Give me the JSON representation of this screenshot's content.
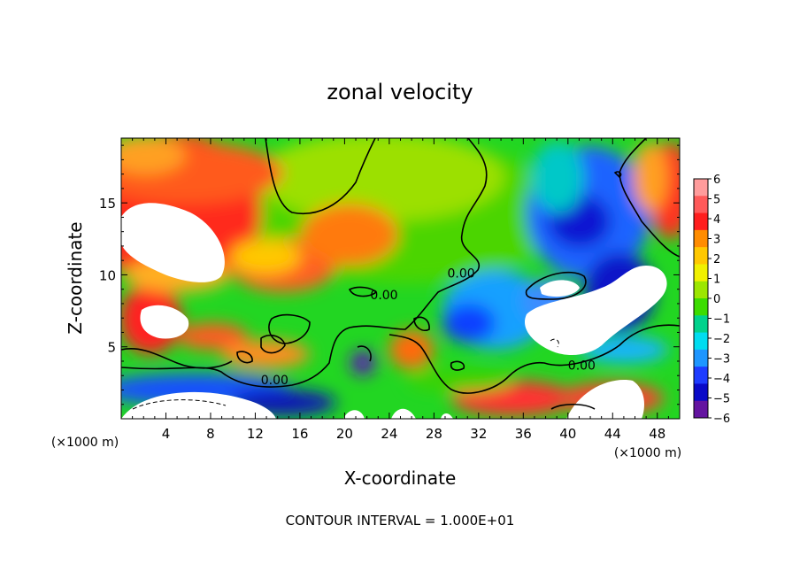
{
  "chart_data": {
    "type": "heatmap",
    "title": "zonal velocity",
    "xlabel": "X-coordinate",
    "ylabel": "Z-coordinate",
    "x_unit": "(×1000 m)",
    "y_unit": "(×1000 m)",
    "xlim": [
      0,
      50
    ],
    "ylim": [
      0,
      19.5
    ],
    "x_ticks": [
      4,
      8,
      12,
      16,
      20,
      24,
      28,
      32,
      36,
      40,
      44,
      48
    ],
    "y_ticks": [
      5,
      10,
      15
    ],
    "colorbar": {
      "ticks": [
        6,
        5,
        4,
        3,
        2,
        1,
        0,
        -1,
        -2,
        -3,
        -4,
        -5,
        -6
      ],
      "range": [
        -6,
        6
      ]
    },
    "contour_labels": [
      {
        "text": "0.00",
        "x": 12.5,
        "y": 2.4
      },
      {
        "text": "0.00",
        "x": 22.3,
        "y": 8.3
      },
      {
        "text": "0.00",
        "x": 29.2,
        "y": 9.8
      },
      {
        "text": "0.00",
        "x": 40.0,
        "y": 3.4
      }
    ],
    "footnote": "CONTOUR INTERVAL = 1.000E+01"
  }
}
